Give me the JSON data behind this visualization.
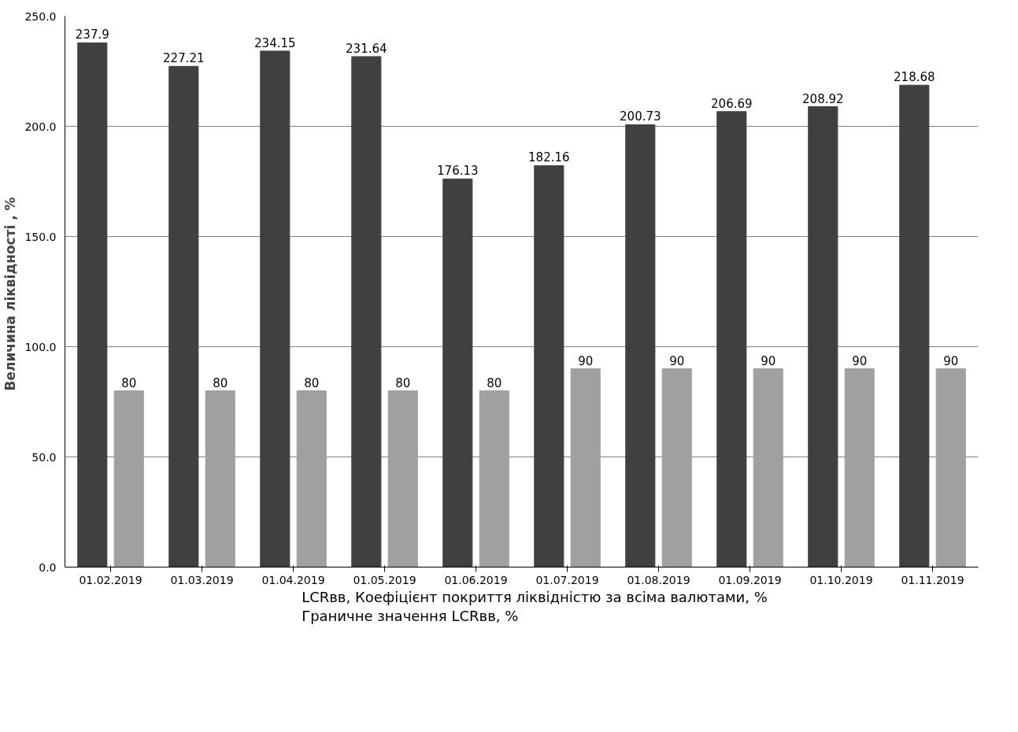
{
  "chart_data": {
    "type": "bar",
    "ylabel": "Величина ліквідності  , %",
    "categories": [
      "01.02.2019",
      "01.03.2019",
      "01.04.2019",
      "01.05.2019",
      "01.06.2019",
      "01.07.2019",
      "01.08.2019",
      "01.09.2019",
      "01.10.2019",
      "01.11.2019"
    ],
    "series": [
      {
        "name": "LCRвв, Коефіцієнт покриття ліквідністю за всіма валютами, %",
        "color": "#404040",
        "values": [
          237.9,
          227.21,
          234.15,
          231.64,
          176.13,
          182.16,
          200.73,
          206.69,
          208.92,
          218.68
        ]
      },
      {
        "name": "Граничне значення LCRвв, %",
        "color": "#a0a0a0",
        "values": [
          80,
          80,
          80,
          80,
          80,
          90,
          90,
          90,
          90,
          90
        ]
      }
    ],
    "ylim": [
      0,
      250
    ],
    "yticks": [
      {
        "value": 0,
        "label": "0.0"
      },
      {
        "value": 50,
        "label": "50.0"
      },
      {
        "value": 100,
        "label": "100.0"
      },
      {
        "value": 150,
        "label": "150.0"
      },
      {
        "value": 200,
        "label": "200.0"
      },
      {
        "value": 250,
        "label": "250.0"
      }
    ],
    "grid": "y",
    "legend": "bottom",
    "data_labels": true
  }
}
